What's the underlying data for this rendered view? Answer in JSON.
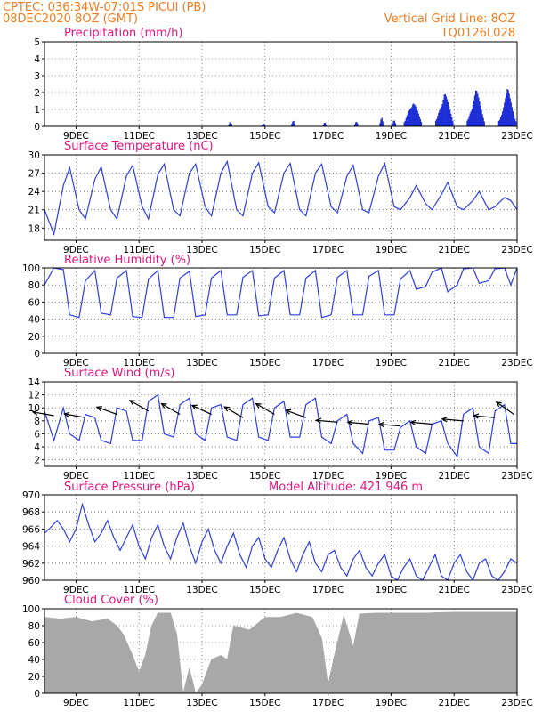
{
  "header": {
    "station": "CPTEC:   036:34W-07:01S   PICUI (PB)",
    "run": "08DEC2020 8OZ (GMT)",
    "grid_info": "Vertical Grid Line: 8OZ",
    "product_code": "TQ0126L028"
  },
  "colors": {
    "header": "#f07d1e",
    "title": "#e8117f",
    "series": "#2b3de8",
    "bars": "#1f2fd6",
    "cloud": "#a8a8a8"
  },
  "time_axis": {
    "start_day": 8,
    "end_day": 23,
    "labels": [
      {
        "day": 9,
        "text": "9DEC"
      },
      {
        "day": 11,
        "text": "11DEC"
      },
      {
        "day": 13,
        "text": "13DEC"
      },
      {
        "day": 15,
        "text": "15DEC"
      },
      {
        "day": 17,
        "text": "17DEC"
      },
      {
        "day": 19,
        "text": "19DEC"
      },
      {
        "day": 21,
        "text": "21DEC"
      },
      {
        "day": 23,
        "text": "23DEC"
      }
    ]
  },
  "chart_data": [
    {
      "type": "bar",
      "title": "Precipitation (mm/h)",
      "ylim": [
        0,
        5
      ],
      "yticks": [
        0,
        1,
        2,
        3,
        4,
        5
      ],
      "grid": true,
      "peaks": [
        {
          "day": 13.9,
          "value": 0.3
        },
        {
          "day": 14.95,
          "value": 0.2
        },
        {
          "day": 15.9,
          "value": 0.4
        },
        {
          "day": 16.9,
          "value": 0.3
        },
        {
          "day": 17.9,
          "value": 0.4
        },
        {
          "day": 18.7,
          "value": 0.6
        },
        {
          "day": 19.1,
          "value": 0.5
        },
        {
          "day": 19.7,
          "value": 1.7
        },
        {
          "day": 20.7,
          "value": 2.2
        },
        {
          "day": 21.7,
          "value": 2.3
        },
        {
          "day": 22.7,
          "value": 2.3
        }
      ]
    },
    {
      "type": "line",
      "title": "Surface Temperature (nC)",
      "ylim": [
        16,
        30
      ],
      "yticks": [
        18,
        21,
        24,
        27,
        30
      ],
      "grid": true,
      "days": [
        8.0,
        8.3,
        8.6,
        8.8,
        9.1,
        9.3,
        9.6,
        9.8,
        10.1,
        10.3,
        10.6,
        10.8,
        11.1,
        11.3,
        11.6,
        11.8,
        12.1,
        12.3,
        12.6,
        12.8,
        13.1,
        13.3,
        13.6,
        13.8,
        14.1,
        14.3,
        14.6,
        14.8,
        15.1,
        15.3,
        15.6,
        15.8,
        16.1,
        16.3,
        16.6,
        16.8,
        17.1,
        17.3,
        17.6,
        17.8,
        18.1,
        18.3,
        18.6,
        18.8,
        19.1,
        19.3,
        19.6,
        19.8,
        20.1,
        20.3,
        20.6,
        20.8,
        21.1,
        21.3,
        21.6,
        21.8,
        22.1,
        22.3,
        22.6,
        22.8,
        23.0
      ],
      "values": [
        21.0,
        17.0,
        25.0,
        27.9,
        21.0,
        19.5,
        26.0,
        28.0,
        21.0,
        19.5,
        26.5,
        28.3,
        21.5,
        19.5,
        26.8,
        28.5,
        21.0,
        20.0,
        27.0,
        28.5,
        21.5,
        20.0,
        27.0,
        28.9,
        21.0,
        20.0,
        27.0,
        28.7,
        21.5,
        20.5,
        27.0,
        28.6,
        21.0,
        20.0,
        27.0,
        28.5,
        21.5,
        20.5,
        26.5,
        28.3,
        21.0,
        20.5,
        26.5,
        28.6,
        21.5,
        21.0,
        23.0,
        25.0,
        22.0,
        21.0,
        23.5,
        25.5,
        21.5,
        21.0,
        22.5,
        24.0,
        21.0,
        21.5,
        23.0,
        22.5,
        21.0
      ]
    },
    {
      "type": "line",
      "title": "Relative Humidity (%)",
      "ylim": [
        0,
        100
      ],
      "yticks": [
        0,
        20,
        40,
        60,
        80,
        100
      ],
      "grid": true,
      "days": [
        8.0,
        8.3,
        8.6,
        8.8,
        9.1,
        9.3,
        9.6,
        9.8,
        10.1,
        10.3,
        10.6,
        10.8,
        11.1,
        11.3,
        11.6,
        11.8,
        12.1,
        12.3,
        12.6,
        12.8,
        13.1,
        13.3,
        13.6,
        13.8,
        14.1,
        14.3,
        14.6,
        14.8,
        15.1,
        15.3,
        15.6,
        15.8,
        16.1,
        16.3,
        16.6,
        16.8,
        17.1,
        17.3,
        17.6,
        17.8,
        18.1,
        18.3,
        18.6,
        18.8,
        19.1,
        19.3,
        19.6,
        19.8,
        20.1,
        20.3,
        20.6,
        20.8,
        21.1,
        21.3,
        21.6,
        21.8,
        22.1,
        22.3,
        22.6,
        22.8,
        23.0
      ],
      "values": [
        80,
        100,
        98,
        45,
        42,
        85,
        97,
        47,
        45,
        88,
        97,
        43,
        42,
        87,
        97,
        42,
        42,
        88,
        96,
        43,
        45,
        88,
        97,
        45,
        45,
        89,
        97,
        44,
        45,
        88,
        97,
        45,
        45,
        88,
        97,
        42,
        45,
        89,
        97,
        45,
        45,
        90,
        97,
        45,
        45,
        87,
        97,
        75,
        78,
        95,
        100,
        72,
        80,
        99,
        100,
        82,
        85,
        99,
        100,
        80,
        100
      ]
    },
    {
      "type": "line",
      "title": "Surface Wind (m/s)",
      "ylim": [
        1,
        14
      ],
      "yticks": [
        2,
        4,
        6,
        8,
        10,
        12,
        14
      ],
      "grid": true,
      "days": [
        8.0,
        8.3,
        8.6,
        8.8,
        9.1,
        9.3,
        9.6,
        9.8,
        10.1,
        10.3,
        10.6,
        10.8,
        11.1,
        11.3,
        11.6,
        11.8,
        12.1,
        12.3,
        12.6,
        12.8,
        13.1,
        13.3,
        13.6,
        13.8,
        14.1,
        14.3,
        14.6,
        14.8,
        15.1,
        15.3,
        15.6,
        15.8,
        16.1,
        16.3,
        16.6,
        16.8,
        17.1,
        17.3,
        17.6,
        17.8,
        18.1,
        18.3,
        18.6,
        18.8,
        19.1,
        19.3,
        19.6,
        19.8,
        20.1,
        20.3,
        20.6,
        20.8,
        21.1,
        21.3,
        21.6,
        21.8,
        22.1,
        22.3,
        22.6,
        22.8,
        23.0
      ],
      "values": [
        9.5,
        5.0,
        10.0,
        6.0,
        5.0,
        9.0,
        8.5,
        5.0,
        4.5,
        10.0,
        9.5,
        5.0,
        5.0,
        11.0,
        12.0,
        6.0,
        5.5,
        10.5,
        11.5,
        6.0,
        5.0,
        10.0,
        10.5,
        5.5,
        5.0,
        10.5,
        11.5,
        5.5,
        5.0,
        10.0,
        11.0,
        5.5,
        5.5,
        10.5,
        11.5,
        5.5,
        4.5,
        8.0,
        9.0,
        4.5,
        3.0,
        8.0,
        8.5,
        3.5,
        3.5,
        7.0,
        8.0,
        4.0,
        3.0,
        7.5,
        8.0,
        4.5,
        2.5,
        9.0,
        10.0,
        4.0,
        3.0,
        9.5,
        10.5,
        4.5,
        4.5
      ],
      "vectors": [
        {
          "day": 8.3,
          "value": 8.8,
          "dir_deg": 170
        },
        {
          "day": 9.3,
          "value": 8.5,
          "dir_deg": 170
        },
        {
          "day": 10.3,
          "value": 9.0,
          "dir_deg": 160
        },
        {
          "day": 11.3,
          "value": 9.5,
          "dir_deg": 150
        },
        {
          "day": 12.3,
          "value": 9.0,
          "dir_deg": 150
        },
        {
          "day": 13.3,
          "value": 9.0,
          "dir_deg": 155
        },
        {
          "day": 14.3,
          "value": 8.5,
          "dir_deg": 150
        },
        {
          "day": 15.3,
          "value": 9.0,
          "dir_deg": 150
        },
        {
          "day": 16.3,
          "value": 8.5,
          "dir_deg": 160
        },
        {
          "day": 17.3,
          "value": 7.8,
          "dir_deg": 175
        },
        {
          "day": 18.3,
          "value": 7.5,
          "dir_deg": 175
        },
        {
          "day": 19.3,
          "value": 7.2,
          "dir_deg": 175
        },
        {
          "day": 20.3,
          "value": 7.5,
          "dir_deg": 175
        },
        {
          "day": 21.3,
          "value": 8.0,
          "dir_deg": 175
        },
        {
          "day": 22.3,
          "value": 8.5,
          "dir_deg": 175
        },
        {
          "day": 22.9,
          "value": 9.0,
          "dir_deg": 145
        }
      ]
    },
    {
      "type": "line",
      "title": "Surface Pressure (hPa)",
      "annotation": "Model Altitude: 421.946  m",
      "ylim": [
        960,
        970
      ],
      "yticks": [
        960,
        962,
        964,
        966,
        968,
        970
      ],
      "grid": true,
      "days": [
        8.0,
        8.2,
        8.4,
        8.6,
        8.8,
        9.0,
        9.2,
        9.4,
        9.6,
        9.8,
        10.0,
        10.2,
        10.4,
        10.6,
        10.8,
        11.0,
        11.2,
        11.4,
        11.6,
        11.8,
        12.0,
        12.2,
        12.4,
        12.6,
        12.8,
        13.0,
        13.2,
        13.4,
        13.6,
        13.8,
        14.0,
        14.2,
        14.4,
        14.6,
        14.8,
        15.0,
        15.2,
        15.4,
        15.6,
        15.8,
        16.0,
        16.2,
        16.4,
        16.6,
        16.8,
        17.0,
        17.2,
        17.4,
        17.6,
        17.8,
        18.0,
        18.2,
        18.4,
        18.6,
        18.8,
        19.0,
        19.2,
        19.4,
        19.6,
        19.8,
        20.0,
        20.2,
        20.4,
        20.6,
        20.8,
        21.0,
        21.2,
        21.4,
        21.6,
        21.8,
        22.0,
        22.2,
        22.4,
        22.6,
        22.8,
        23.0
      ],
      "values": [
        965.5,
        966.2,
        967.0,
        966.0,
        964.5,
        966.0,
        968.9,
        966.5,
        964.5,
        965.5,
        967.0,
        965.0,
        963.5,
        965.0,
        966.5,
        964.0,
        962.5,
        965.0,
        966.5,
        964.0,
        962.5,
        965.0,
        966.7,
        964.0,
        962.0,
        964.5,
        966.0,
        963.5,
        962.0,
        964.0,
        965.5,
        963.0,
        961.5,
        964.0,
        965.0,
        962.5,
        961.5,
        963.5,
        965.0,
        962.5,
        961.0,
        963.0,
        964.5,
        962.0,
        961.0,
        963.0,
        963.5,
        961.5,
        960.5,
        962.5,
        963.5,
        961.5,
        960.5,
        962.0,
        963.0,
        960.5,
        960.0,
        961.5,
        962.5,
        960.5,
        960.0,
        961.5,
        963.0,
        960.5,
        960.0,
        962.0,
        963.0,
        961.0,
        960.0,
        962.0,
        962.5,
        960.5,
        960.0,
        961.0,
        962.5,
        962.0
      ]
    },
    {
      "type": "area",
      "title": "Cloud Cover (%)",
      "ylim": [
        0,
        100
      ],
      "yticks": [
        0,
        20,
        40,
        60,
        80,
        100
      ],
      "grid": true,
      "days": [
        8.0,
        8.5,
        9.0,
        9.5,
        10.0,
        10.3,
        10.5,
        10.8,
        11.0,
        11.2,
        11.4,
        11.6,
        11.8,
        12.0,
        12.2,
        12.4,
        12.6,
        12.8,
        13.0,
        13.3,
        13.6,
        13.8,
        14.0,
        14.5,
        15.0,
        15.5,
        16.0,
        16.5,
        16.8,
        17.0,
        17.2,
        17.5,
        17.8,
        18.0,
        18.5,
        19.0,
        20.0,
        21.0,
        22.0,
        23.0
      ],
      "values": [
        90,
        88,
        90,
        85,
        88,
        80,
        70,
        45,
        25,
        45,
        80,
        95,
        95,
        95,
        70,
        0,
        30,
        0,
        10,
        40,
        45,
        40,
        80,
        75,
        90,
        90,
        95,
        90,
        65,
        10,
        45,
        92,
        55,
        94,
        95,
        95,
        95,
        96,
        96,
        96
      ]
    }
  ]
}
